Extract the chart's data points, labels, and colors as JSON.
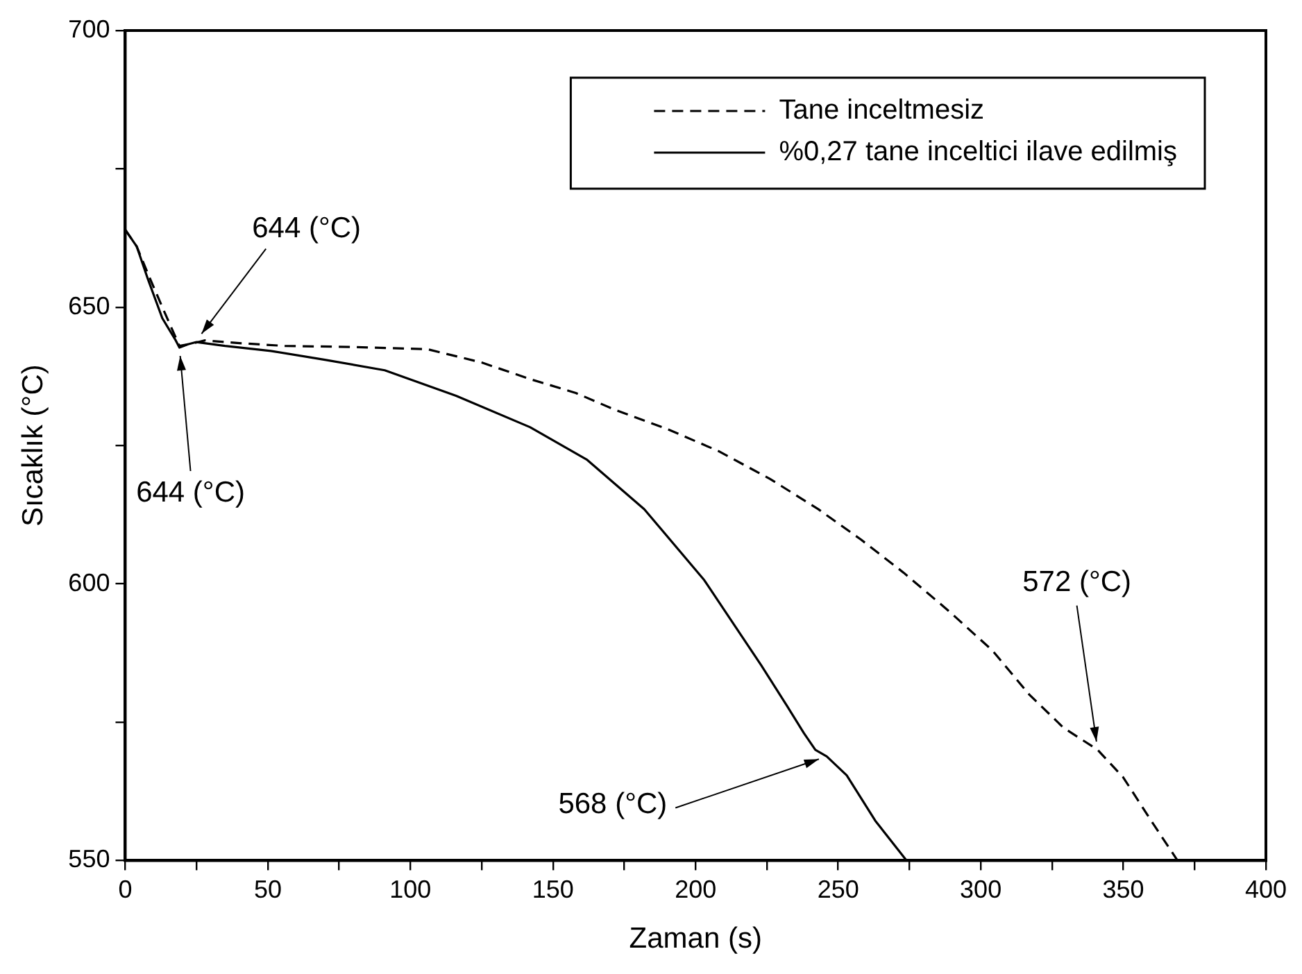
{
  "chart_data": {
    "type": "line",
    "xlabel": "Zaman (s)",
    "ylabel": "Sıcaklık (°C)",
    "xlim": [
      0,
      400
    ],
    "xticks": [
      0,
      {
        "value": 25,
        "label": null
      },
      50,
      {
        "value": 75,
        "label": null
      },
      100,
      {
        "value": 125,
        "label": null
      },
      150,
      {
        "value": 175,
        "label": null
      },
      200,
      {
        "value": 225,
        "label": null
      },
      250,
      {
        "value": 275,
        "label": null
      },
      300,
      {
        "value": 325,
        "label": null
      },
      350,
      {
        "value": 375,
        "label": null
      },
      400
    ],
    "ylim": [
      550,
      700
    ],
    "yticks": [
      550,
      {
        "value": 575,
        "label": null
      },
      600,
      {
        "value": 625,
        "label": null
      },
      650,
      {
        "value": 675,
        "label": null
      },
      700
    ],
    "grid": false,
    "legend": "top right",
    "marker": "none",
    "series": [
      {
        "name": "Tane inceltmesiz",
        "color": "#000000",
        "line_style": "dashed",
        "x": [
          0,
          4,
          8,
          13,
          19,
          24,
          28,
          40,
          56,
          80,
          106,
          125,
          142,
          158,
          172,
          190,
          208,
          226,
          243,
          258,
          273,
          289,
          304,
          317,
          329,
          335,
          341,
          350,
          360,
          369
        ],
        "values": [
          664,
          661,
          656,
          650,
          643,
          643.5,
          644,
          643.5,
          643,
          642.8,
          642.4,
          640,
          637,
          634.5,
          631.4,
          628,
          624,
          619,
          613.5,
          608,
          602,
          595,
          588,
          580,
          574,
          572,
          570,
          565,
          557,
          550
        ]
      },
      {
        "name": "%0,27 tane inceltici ilave edilmiş",
        "color": "#000000",
        "line_style": "solid",
        "x": [
          0,
          4,
          8,
          13,
          17.7,
          19,
          22,
          25,
          35,
          51,
          70,
          91,
          116,
          142,
          162,
          182,
          203,
          223,
          232,
          238,
          242,
          246,
          253,
          263,
          274
        ],
        "values": [
          664,
          661,
          655,
          648,
          644,
          642.7,
          643.3,
          643.7,
          643,
          642.1,
          640.5,
          638.6,
          634,
          628.3,
          622.4,
          613.5,
          600.7,
          585.3,
          578,
          573,
          570,
          568.8,
          565.4,
          557.2,
          550
        ]
      }
    ],
    "annotations": [
      {
        "text": "644 (°C)",
        "x": 25,
        "y": 644
      },
      {
        "text": "644 (°C)",
        "x": 19,
        "y": 642.7
      },
      {
        "text": "568 (°C)",
        "x": 246,
        "y": 568.8
      },
      {
        "text": "572 (°C)",
        "x": 341,
        "y": 570
      }
    ]
  }
}
